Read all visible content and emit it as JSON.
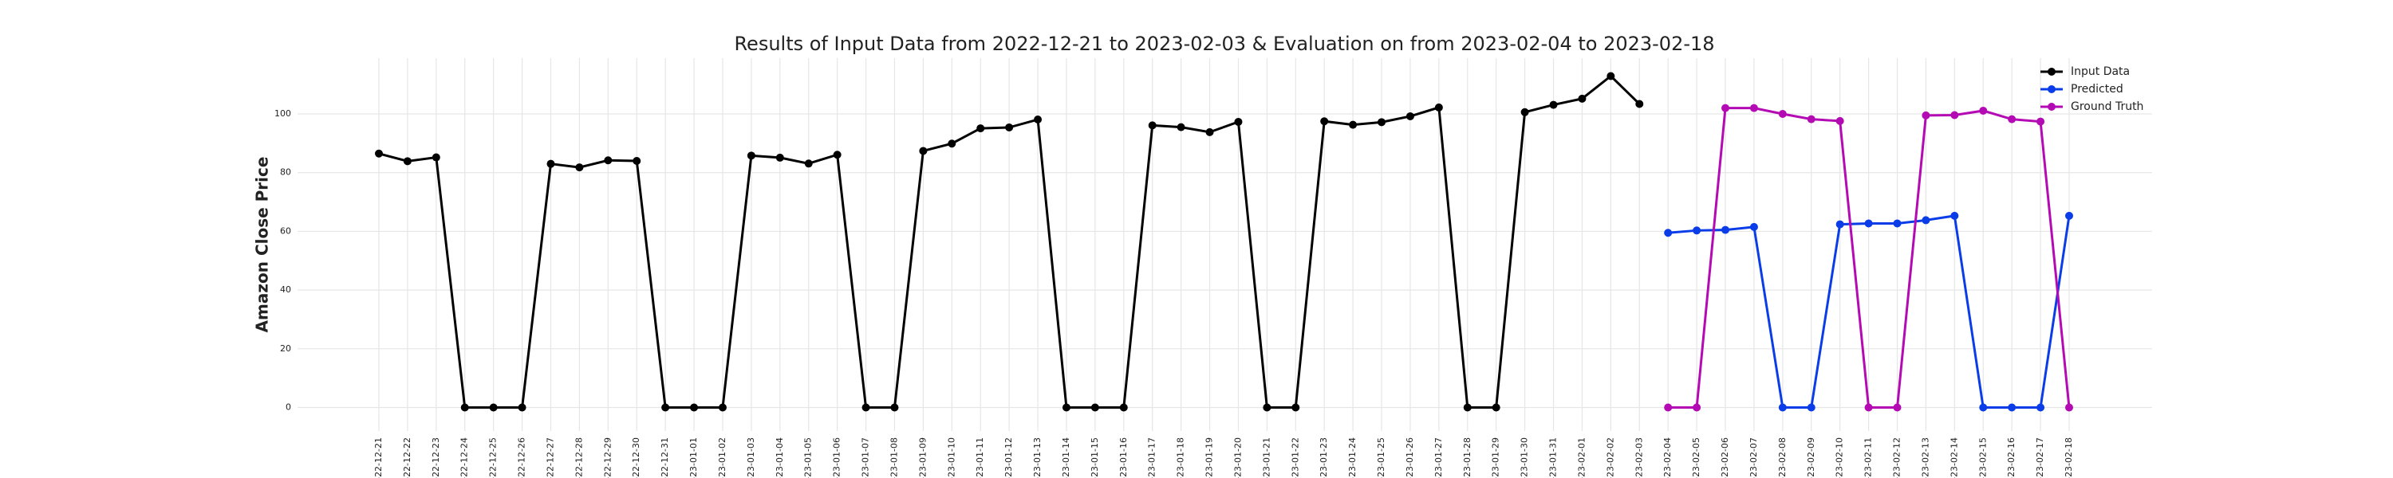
{
  "chart_data": {
    "type": "line",
    "title": "Results of Input Data from 2022-12-21 to 2023-02-03 & Evaluation on from 2023-02-04 to 2023-02-18",
    "y_label": "Amazon Close Price",
    "x": [
      "-22-12-21",
      "-22-12-22",
      "-22-12-23",
      "-22-12-24",
      "-22-12-25",
      "-22-12-26",
      "-22-12-27",
      "-22-12-28",
      "-22-12-29",
      "-22-12-30",
      "-22-12-31",
      "-23-01-01",
      "-23-01-02",
      "-23-01-03",
      "-23-01-04",
      "-23-01-05",
      "-23-01-06",
      "-23-01-07",
      "-23-01-08",
      "-23-01-09",
      "-23-01-10",
      "-23-01-11",
      "-23-01-12",
      "-23-01-13",
      "-23-01-14",
      "-23-01-15",
      "-23-01-16",
      "-23-01-17",
      "-23-01-18",
      "-23-01-19",
      "-23-01-20",
      "-23-01-21",
      "-23-01-22",
      "-23-01-23",
      "-23-01-24",
      "-23-01-25",
      "-23-01-26",
      "-23-01-27",
      "-23-01-28",
      "-23-01-29",
      "-23-01-30",
      "-23-01-31",
      "-23-02-01",
      "-23-02-02",
      "-23-02-03",
      "-23-02-04",
      "-23-02-05",
      "-23-02-06",
      "-23-02-07",
      "-23-02-08",
      "-23-02-09",
      "-23-02-10",
      "-23-02-11",
      "-23-02-12",
      "-23-02-13",
      "-23-02-14",
      "-23-02-15",
      "-23-02-16",
      "-23-02-17",
      "-23-02-18"
    ],
    "series": [
      {
        "name": "Input Data",
        "color": "#000000",
        "values": [
          86.5,
          83.9,
          85.2,
          0,
          0,
          0,
          83.0,
          81.8,
          84.2,
          84.0,
          0,
          0,
          0,
          85.8,
          85.1,
          83.1,
          86.1,
          0,
          0,
          87.4,
          89.9,
          95.1,
          95.4,
          98.1,
          0,
          0,
          0,
          96.1,
          95.5,
          93.8,
          97.3,
          0,
          0,
          97.5,
          96.3,
          97.2,
          99.2,
          102.2,
          0,
          0,
          100.6,
          103.1,
          105.2,
          112.9,
          103.4,
          null,
          null,
          null,
          null,
          null,
          null,
          null,
          null,
          null,
          null,
          null,
          null,
          null,
          null,
          null
        ]
      },
      {
        "name": "Predicted",
        "color": "#0a3de8",
        "values": [
          null,
          null,
          null,
          null,
          null,
          null,
          null,
          null,
          null,
          null,
          null,
          null,
          null,
          null,
          null,
          null,
          null,
          null,
          null,
          null,
          null,
          null,
          null,
          null,
          null,
          null,
          null,
          null,
          null,
          null,
          null,
          null,
          null,
          null,
          null,
          null,
          null,
          null,
          null,
          null,
          null,
          null,
          null,
          null,
          null,
          59.5,
          60.3,
          60.5,
          61.5,
          0,
          0,
          62.4,
          62.7,
          62.7,
          63.8,
          65.3,
          0,
          0,
          0,
          65.3
        ]
      },
      {
        "name": "Ground Truth",
        "color": "#b40ab4",
        "values": [
          null,
          null,
          null,
          null,
          null,
          null,
          null,
          null,
          null,
          null,
          null,
          null,
          null,
          null,
          null,
          null,
          null,
          null,
          null,
          null,
          null,
          null,
          null,
          null,
          null,
          null,
          null,
          null,
          null,
          null,
          null,
          null,
          null,
          null,
          null,
          null,
          null,
          null,
          null,
          null,
          null,
          null,
          null,
          null,
          null,
          0,
          0,
          102.0,
          102.0,
          100.0,
          98.2,
          97.6,
          0,
          0,
          99.5,
          99.6,
          101.1,
          98.2,
          97.4,
          0
        ]
      }
    ],
    "ylim": [
      -8,
      119
    ],
    "yticks": [
      0,
      20,
      40,
      60,
      80,
      100
    ],
    "grid": true,
    "legend": "upper right"
  }
}
